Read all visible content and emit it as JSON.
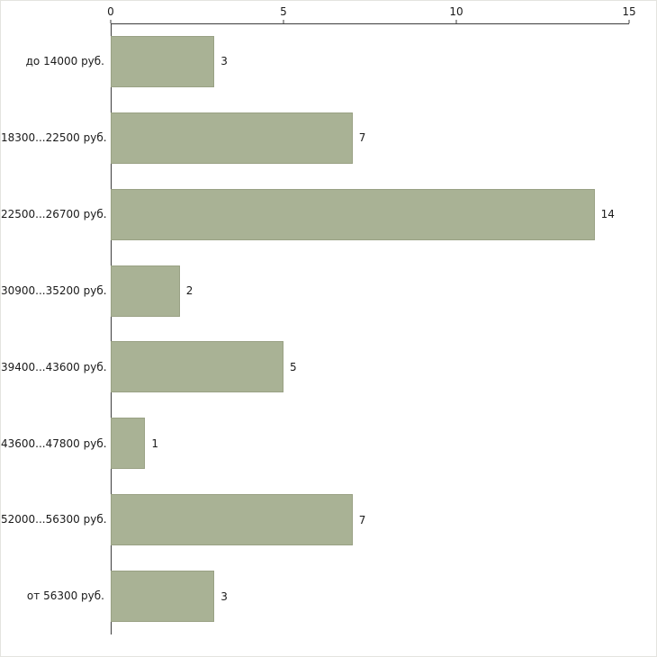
{
  "chart_data": {
    "type": "bar",
    "orientation": "horizontal",
    "title": "",
    "xlabel": "",
    "ylabel": "",
    "categories": [
      "до 14000 руб.",
      "18300...22500 руб.",
      "22500...26700 руб.",
      "30900...35200 руб.",
      "39400...43600 руб.",
      "43600...47800 руб.",
      "52000...56300 руб.",
      "от 56300 руб."
    ],
    "values": [
      3,
      7,
      14,
      2,
      5,
      1,
      7,
      3
    ],
    "xlim": [
      0,
      15
    ],
    "xticks": [
      0,
      5,
      10,
      15
    ],
    "grid": false,
    "legend": "none",
    "axis_position": "top-left",
    "colors": {
      "bar_fill": "#a9b295",
      "bar_border": "#99a184",
      "axis": "#3c3c3c",
      "text": "#1a1a1a",
      "background": "#ffffff"
    }
  }
}
